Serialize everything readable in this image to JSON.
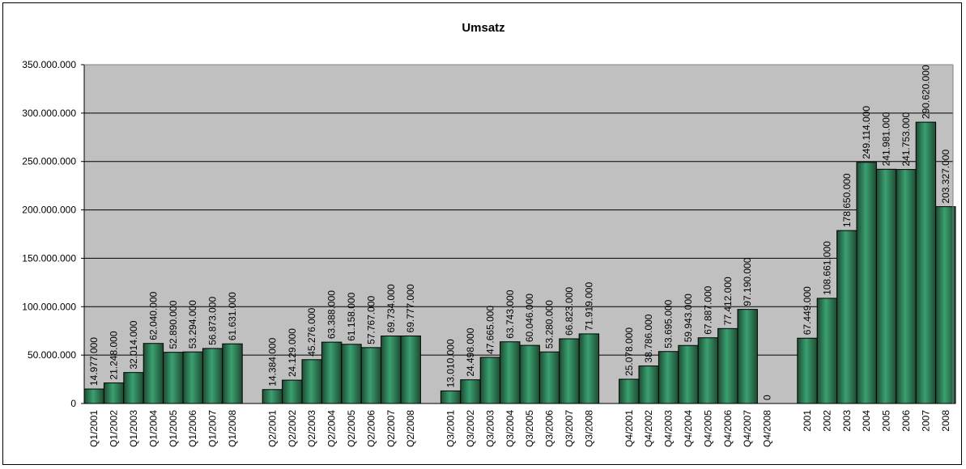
{
  "chart_data": {
    "type": "bar",
    "title": "Umsatz",
    "xlabel": "",
    "ylabel": "",
    "ylim": [
      0,
      350000000
    ],
    "yticks": [
      0,
      50000000,
      100000000,
      150000000,
      200000000,
      250000000,
      300000000,
      350000000
    ],
    "ytick_labels": [
      "0",
      "50.000.000",
      "100.000.000",
      "150.000.000",
      "200.000.000",
      "250.000.000",
      "300.000.000",
      "350.000.000"
    ],
    "grid": true,
    "plot_background": "#c0c0c0",
    "bar_color_light": "#3aa070",
    "bar_color_dark": "#1e4a32",
    "groups": [
      {
        "categories": [
          "Q1/2001",
          "Q1/2002",
          "Q1/2003",
          "Q1/2004",
          "Q1/2005",
          "Q1/2006",
          "Q1/2007",
          "Q1/2008"
        ],
        "values": [
          14977000,
          21248000,
          32014000,
          62040000,
          52890000,
          53294000,
          56873000,
          61631000
        ],
        "labels": [
          "14.977.000",
          "21.248.000",
          "32.014.000",
          "62.040.000",
          "52.890.000",
          "53.294.000",
          "56.873.000",
          "61.631.000"
        ]
      },
      {
        "categories": [
          "Q2/2001",
          "Q2/2002",
          "Q2/2003",
          "Q2/2004",
          "Q2/2005",
          "Q2/2006",
          "Q2/2007",
          "Q2/2008"
        ],
        "values": [
          14384000,
          24129000,
          45276000,
          63388000,
          61158000,
          57767000,
          69734000,
          69777000
        ],
        "labels": [
          "14.384.000",
          "24.129.000",
          "45.276.000",
          "63.388.000",
          "61.158.000",
          "57.767.000",
          "69.734.000",
          "69.777.000"
        ]
      },
      {
        "categories": [
          "Q3/2001",
          "Q3/2002",
          "Q3/2003",
          "Q3/2004",
          "Q3/2005",
          "Q3/2006",
          "Q3/2007",
          "Q3/2008"
        ],
        "values": [
          13010000,
          24498000,
          47665000,
          63743000,
          60046000,
          53280000,
          66823000,
          71919000
        ],
        "labels": [
          "13.010.000",
          "24.498.000",
          "47.665.000",
          "63.743.000",
          "60.046.000",
          "53.280.000",
          "66.823.000",
          "71.919.000"
        ]
      },
      {
        "categories": [
          "Q4/2001",
          "Q4/2002",
          "Q4/2003",
          "Q4/2004",
          "Q4/2005",
          "Q4/2006",
          "Q4/2007",
          "Q4/2008"
        ],
        "values": [
          25078000,
          38786000,
          53695000,
          59943000,
          67887000,
          77412000,
          97190000,
          0
        ],
        "labels": [
          "25.078.000",
          "38.786.000",
          "53.695.000",
          "59.943.000",
          "67.887.000",
          "77.412.000",
          "97.190.000",
          "0"
        ]
      },
      {
        "categories": [
          "2001",
          "2002",
          "2003",
          "2004",
          "2005",
          "2006",
          "2007",
          "2008"
        ],
        "values": [
          67449000,
          108661000,
          178650000,
          249114000,
          241981000,
          241753000,
          290620000,
          203327000
        ],
        "labels": [
          "67.449.000",
          "108.661.000",
          "178.650.000",
          "249.114.000",
          "241.981.000",
          "241.753.000",
          "290.620.000",
          "203.327.000"
        ]
      }
    ]
  }
}
